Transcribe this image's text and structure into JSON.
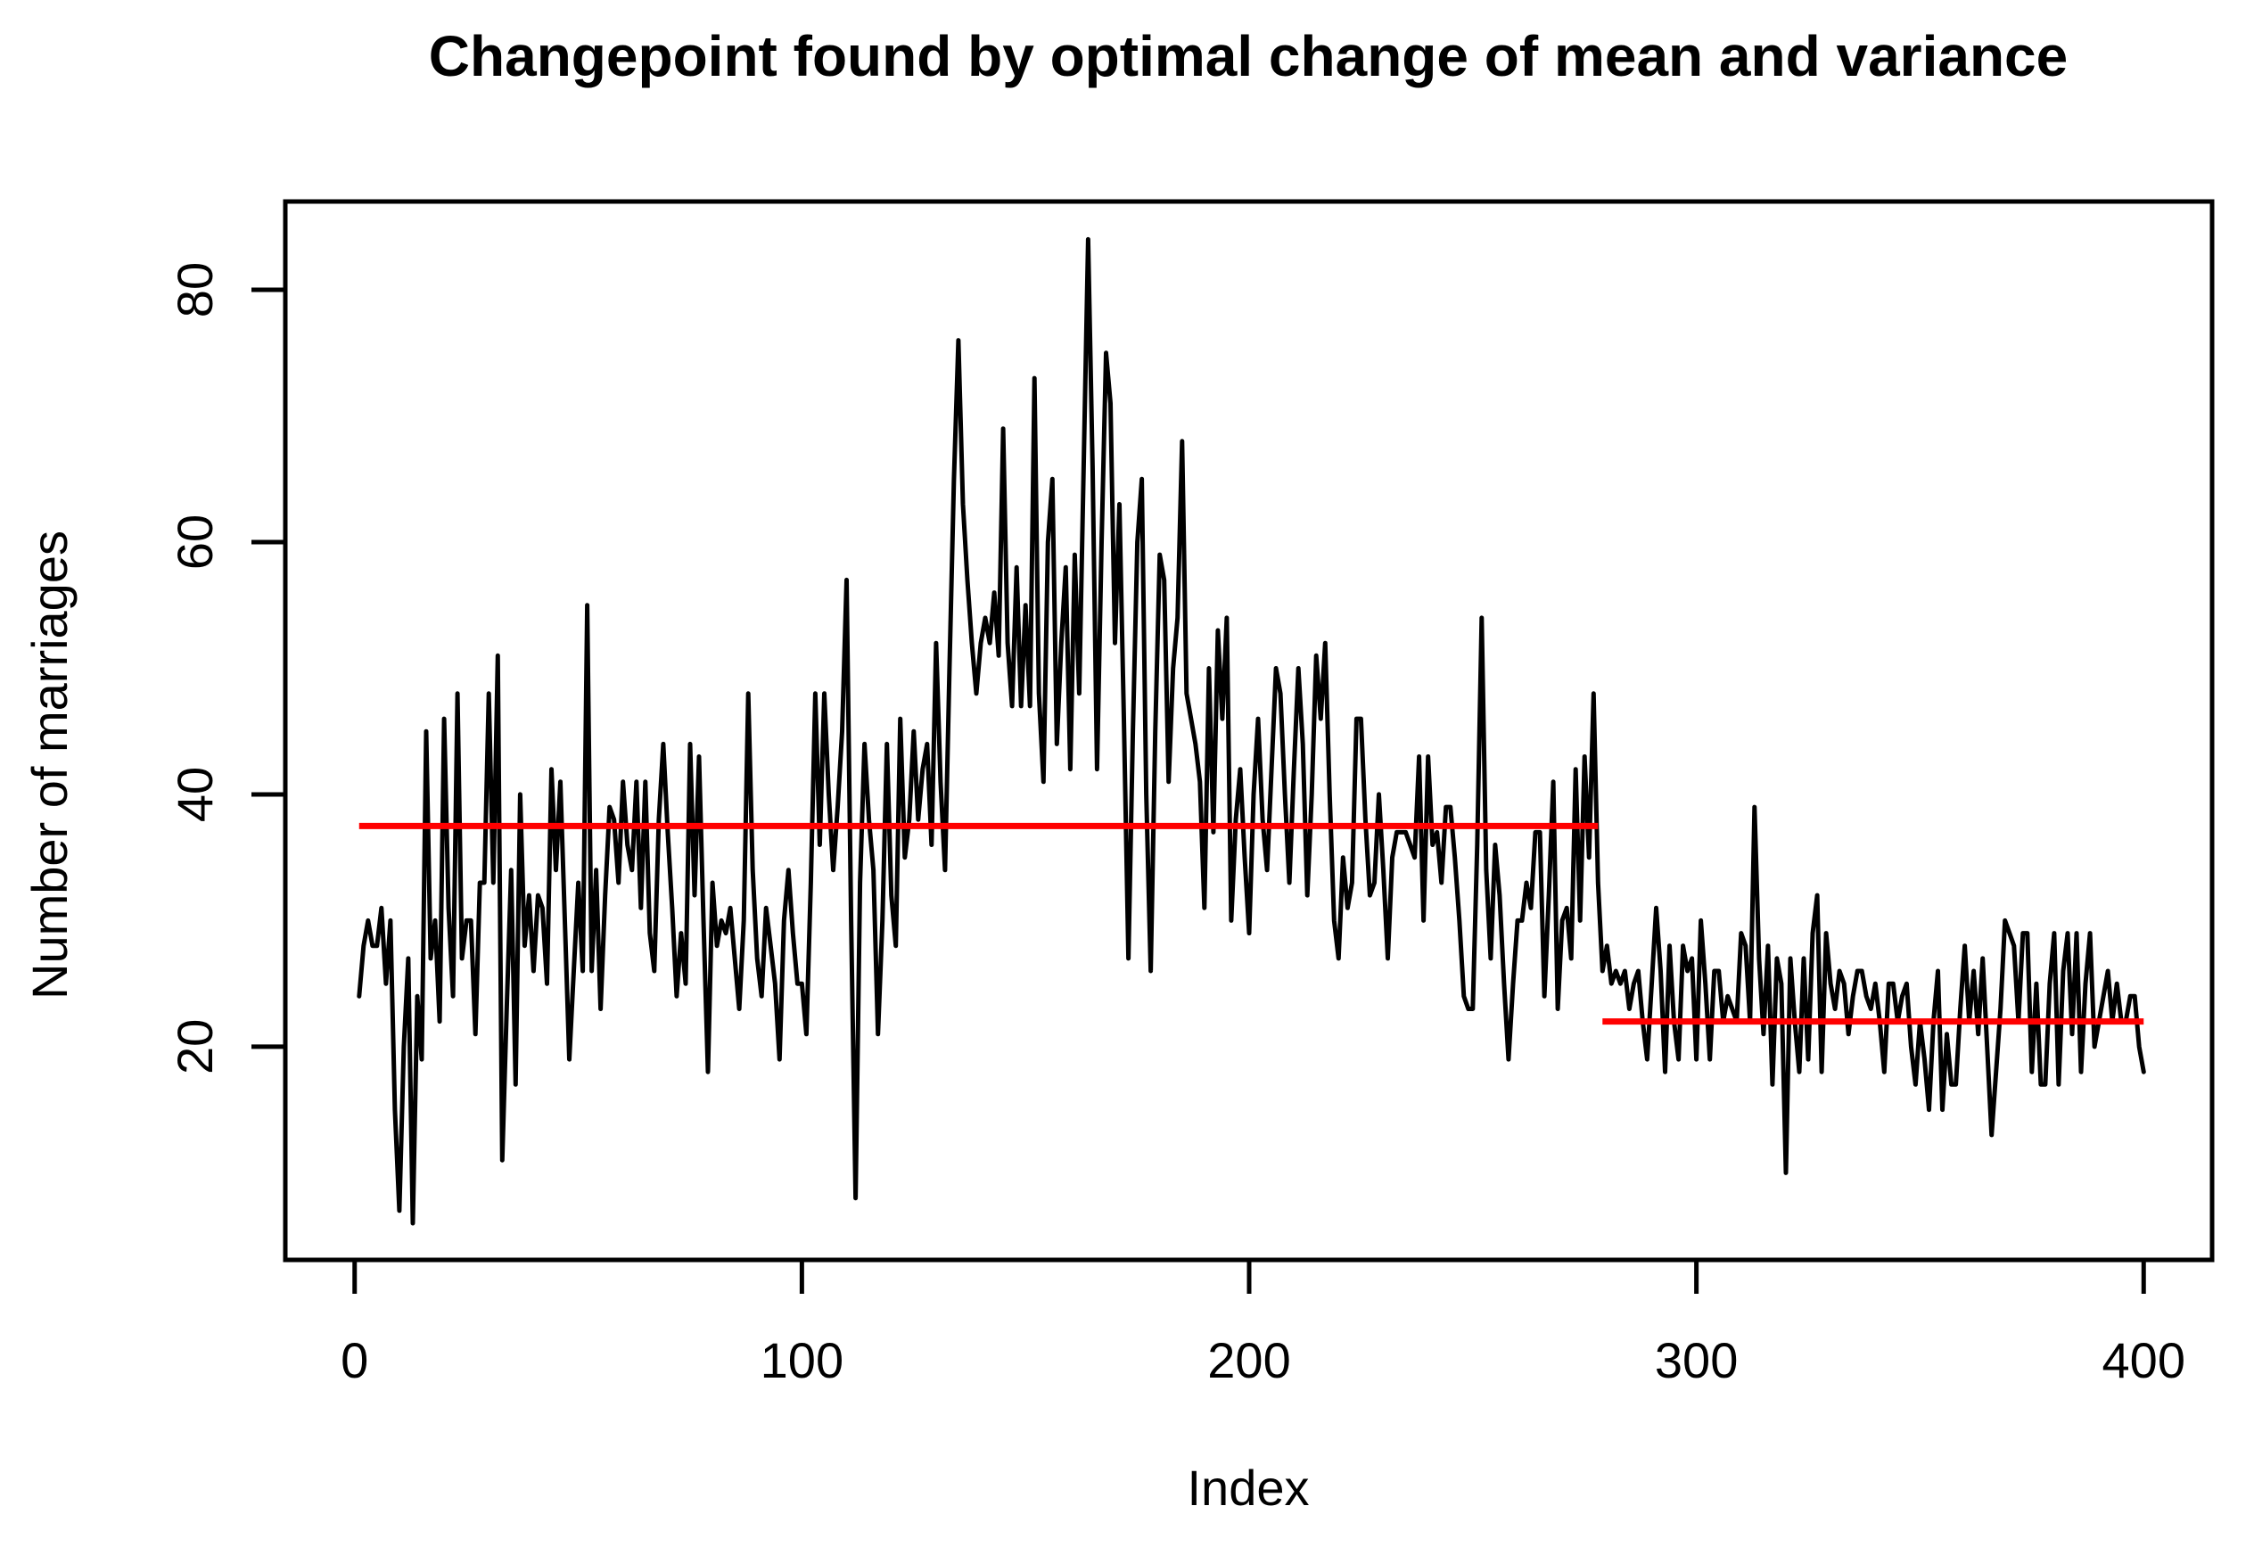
{
  "chart_data": {
    "type": "line",
    "title": "Changepoint found by optimal change of mean and variance",
    "xlabel": "Index",
    "ylabel": "Number of marriages",
    "x_ticks": [
      0,
      100,
      200,
      300,
      400
    ],
    "y_ticks": [
      20,
      40,
      60,
      80
    ],
    "xlim": [
      -15.5,
      415.3
    ],
    "ylim": [
      3.1,
      87.0
    ],
    "grid": false,
    "legend": "none",
    "background_color": "#FFFFFF",
    "frame_color": "#000000",
    "series_color": "#000000",
    "changepoint_color": "#FF0000",
    "x_start_index": 1,
    "series": [
      {
        "name": "Number of marriages",
        "values": [
          24,
          28,
          30,
          28,
          28,
          31,
          25,
          30,
          15,
          7,
          20,
          27,
          6,
          24,
          19,
          45,
          27,
          30,
          22,
          46,
          31,
          24,
          48,
          27,
          30,
          30,
          21,
          33,
          33,
          48,
          33,
          51,
          11,
          23,
          34,
          17,
          40,
          28,
          32,
          26,
          32,
          31,
          25,
          42,
          34,
          41,
          30,
          19,
          26,
          33,
          26,
          55,
          26,
          34,
          23,
          32,
          39,
          38,
          33,
          41,
          36,
          34,
          41,
          31,
          41,
          29,
          26,
          38,
          44,
          37,
          31,
          24,
          29,
          25,
          44,
          32,
          43,
          30,
          18,
          33,
          28,
          30,
          29,
          31,
          27,
          23,
          30,
          48,
          34,
          27,
          24,
          31,
          28,
          25,
          19,
          30,
          34,
          29,
          25,
          25,
          21,
          33,
          48,
          36,
          48,
          40,
          34,
          39,
          45,
          57,
          30,
          8,
          33,
          44,
          38,
          34,
          21,
          30,
          44,
          32,
          28,
          46,
          35,
          38,
          45,
          38,
          42,
          44,
          36,
          52,
          41,
          34,
          50,
          65,
          76,
          63,
          57,
          52,
          48,
          52,
          54,
          52,
          56,
          51,
          69,
          52,
          47,
          58,
          47,
          55,
          47,
          73,
          48,
          41,
          60,
          65,
          44,
          52,
          58,
          42,
          59,
          48,
          66,
          84,
          66,
          42,
          60,
          75,
          71,
          52,
          63,
          46,
          27,
          45,
          60,
          65,
          40,
          26,
          45,
          59,
          57,
          41,
          50,
          54,
          68,
          48,
          46,
          44,
          41,
          31,
          50,
          37,
          53,
          46,
          54,
          30,
          38,
          42,
          35,
          29,
          40,
          46,
          38,
          34,
          42,
          50,
          48,
          40,
          33,
          42,
          50,
          44,
          32,
          40,
          51,
          46,
          52,
          40,
          30,
          27,
          35,
          31,
          33,
          46,
          46,
          38,
          32,
          33,
          40,
          34,
          27,
          35,
          37,
          37,
          37,
          36,
          35,
          43,
          30,
          43,
          36,
          37,
          33,
          39,
          39,
          35,
          30,
          24,
          23,
          23,
          36,
          54,
          34,
          27,
          36,
          32,
          25,
          19,
          25,
          30,
          30,
          33,
          31,
          37,
          37,
          24,
          32,
          41,
          23,
          30,
          31,
          27,
          42,
          30,
          43,
          35,
          48,
          33,
          26,
          28,
          25,
          26,
          25,
          26,
          23,
          25,
          26,
          22,
          19,
          25,
          31,
          26,
          18,
          28,
          22,
          19,
          28,
          26,
          27,
          19,
          30,
          25,
          19,
          26,
          26,
          22,
          24,
          23,
          22,
          29,
          28,
          22,
          39,
          27,
          21,
          28,
          17,
          27,
          25,
          10,
          27,
          22,
          18,
          27,
          19,
          29,
          32,
          18,
          29,
          25,
          23,
          26,
          25,
          21,
          24,
          26,
          26,
          24,
          23,
          25,
          22,
          18,
          25,
          25,
          22,
          24,
          25,
          20,
          17,
          22,
          19,
          15,
          22,
          26,
          15,
          21,
          17,
          17,
          23,
          28,
          22,
          26,
          21,
          27,
          20,
          13,
          18,
          23,
          30,
          29,
          28,
          22,
          29,
          29,
          18,
          25,
          17,
          17,
          25,
          29,
          17,
          26,
          29,
          21,
          29,
          18,
          25,
          29,
          20,
          22,
          24,
          26,
          22,
          25,
          22,
          22,
          24,
          24,
          20,
          18
        ]
      }
    ],
    "changepoint_segments": [
      {
        "x_start": 1,
        "x_end": 278,
        "mean": 37.5
      },
      {
        "x_start": 279,
        "x_end": 400,
        "mean": 22.0
      }
    ]
  }
}
